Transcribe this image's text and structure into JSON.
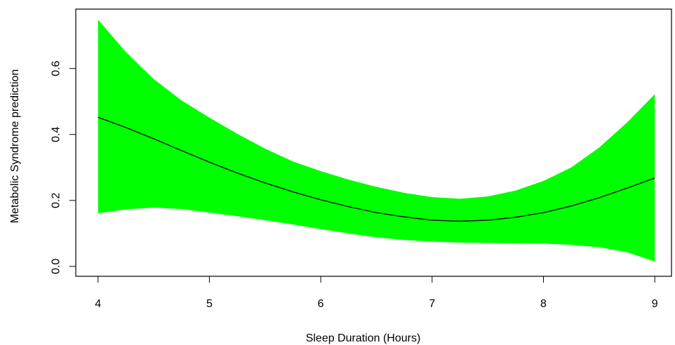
{
  "chart_data": {
    "type": "line",
    "title": "",
    "xlabel": "Sleep Duration (Hours)",
    "ylabel": "Metabolic Syndrome prediction",
    "xlim": [
      3.8,
      9.15
    ],
    "ylim": [
      -0.03,
      0.78
    ],
    "xticks": [
      4,
      5,
      6,
      7,
      8,
      9
    ],
    "xtick_labels": [
      "4",
      "5",
      "6",
      "7",
      "8",
      "9"
    ],
    "yticks": [
      0.0,
      0.2,
      0.4,
      0.6
    ],
    "ytick_labels": [
      "0.0",
      "0.2",
      "0.4",
      "0.6"
    ],
    "grid": false,
    "legend": "none",
    "band_color": "#00ff00",
    "line_color": "#000000",
    "x": [
      4.0,
      4.25,
      4.5,
      4.75,
      5.0,
      5.25,
      5.5,
      5.75,
      6.0,
      6.25,
      6.5,
      6.75,
      7.0,
      7.25,
      7.5,
      7.75,
      8.0,
      8.25,
      8.5,
      8.75,
      9.0
    ],
    "series": [
      {
        "values": [
          0.452,
          0.421,
          0.387,
          0.351,
          0.316,
          0.283,
          0.253,
          0.226,
          0.202,
          0.181,
          0.163,
          0.15,
          0.14,
          0.137,
          0.14,
          0.149,
          0.163,
          0.183,
          0.208,
          0.237,
          0.268
        ]
      }
    ],
    "band": {
      "upper": [
        0.748,
        0.65,
        0.568,
        0.503,
        0.451,
        0.402,
        0.357,
        0.318,
        0.289,
        0.263,
        0.241,
        0.223,
        0.21,
        0.205,
        0.212,
        0.23,
        0.259,
        0.3,
        0.36,
        0.436,
        0.522
      ],
      "lower": [
        0.161,
        0.173,
        0.178,
        0.174,
        0.163,
        0.152,
        0.14,
        0.127,
        0.113,
        0.1,
        0.088,
        0.08,
        0.075,
        0.072,
        0.071,
        0.07,
        0.069,
        0.065,
        0.058,
        0.043,
        0.015
      ]
    }
  }
}
